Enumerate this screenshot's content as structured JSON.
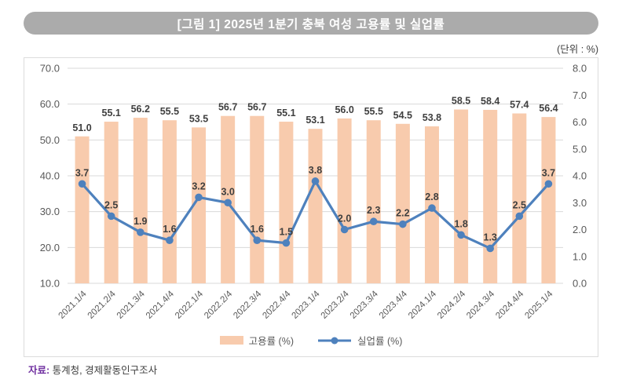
{
  "header": {
    "title": "[그림 1] 2025년 1분기 충북 여성 고용률 및 실업률",
    "unit_label": "(단위 : %)"
  },
  "chart_data": {
    "type": "combo-bar-line",
    "categories": [
      "2021.1/4",
      "2021.2/4",
      "2021.3/4",
      "2021.4/4",
      "2022.1/4",
      "2022.2/4",
      "2022.3/4",
      "2022.4/4",
      "2023.1/4",
      "2023.2/4",
      "2023.3/4",
      "2023.4/4",
      "2024.1/4",
      "2024.2/4",
      "2024.3/4",
      "2024.4/4",
      "2025.1/4"
    ],
    "series": [
      {
        "name": "고용률 (%)",
        "type": "bar",
        "axis": "left",
        "color": "#F8CBAD",
        "values": [
          51.0,
          55.1,
          56.2,
          55.5,
          53.5,
          56.7,
          56.7,
          55.1,
          53.1,
          56.0,
          55.5,
          54.5,
          53.8,
          58.5,
          58.4,
          57.4,
          56.4
        ]
      },
      {
        "name": "실업률 (%)",
        "type": "line",
        "axis": "right",
        "color": "#4E81BD",
        "values": [
          3.7,
          2.5,
          1.9,
          1.6,
          3.2,
          3.0,
          1.6,
          1.5,
          3.8,
          2.0,
          2.3,
          2.2,
          2.8,
          1.8,
          1.3,
          2.5,
          3.7
        ]
      }
    ],
    "left_axis": {
      "min": 10,
      "max": 70,
      "step": 10,
      "decimals": 1
    },
    "right_axis": {
      "min": 0,
      "max": 8,
      "step": 1,
      "decimals": 1
    },
    "grid": true,
    "gridlines_follow": "left_axis",
    "data_labels": true,
    "legend_position": "bottom"
  },
  "legend": {
    "items": [
      {
        "label": "고용률 (%)",
        "swatch": "bar",
        "color": "#F8CBAD"
      },
      {
        "label": "실업률 (%)",
        "swatch": "line",
        "color": "#4E81BD"
      }
    ]
  },
  "footer": {
    "source_label": "자료:",
    "source_text": "통계청, 경제활동인구조사"
  },
  "colors": {
    "title_bar_bg": "#ABABAB",
    "title_text": "#FFFFFF",
    "bar_fill": "#F8CBAD",
    "line_stroke": "#4E81BD",
    "gridline": "#D9D9D9",
    "axis_text": "#595959",
    "data_label_text": "#3F3F3F",
    "frame_border": "#DCDCDC",
    "source_label_text": "#7030A0"
  }
}
